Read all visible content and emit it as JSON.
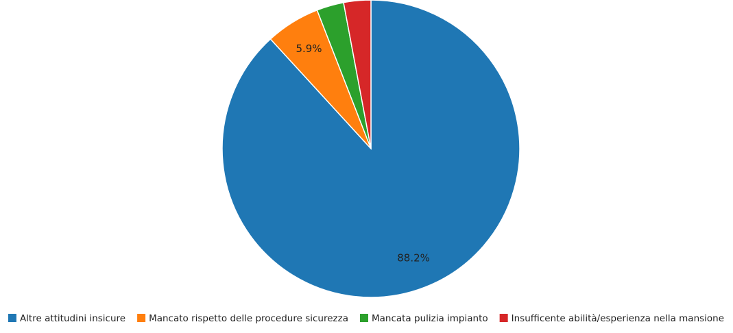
{
  "chart_data": {
    "type": "pie",
    "categories": [
      "Altre attitudini insicure",
      "Mancato rispetto delle procedure sicurezza",
      "Mancata pulizia impianto",
      "Insufficente abilità/esperienza nella mansione"
    ],
    "values": [
      88.2,
      5.9,
      2.95,
      2.95
    ],
    "value_labels": [
      "88.2%",
      "5.9%",
      null,
      null
    ],
    "colors": [
      "#1f77b4",
      "#ff7f0e",
      "#2ca02c",
      "#d62728"
    ],
    "legend": "bottom"
  }
}
